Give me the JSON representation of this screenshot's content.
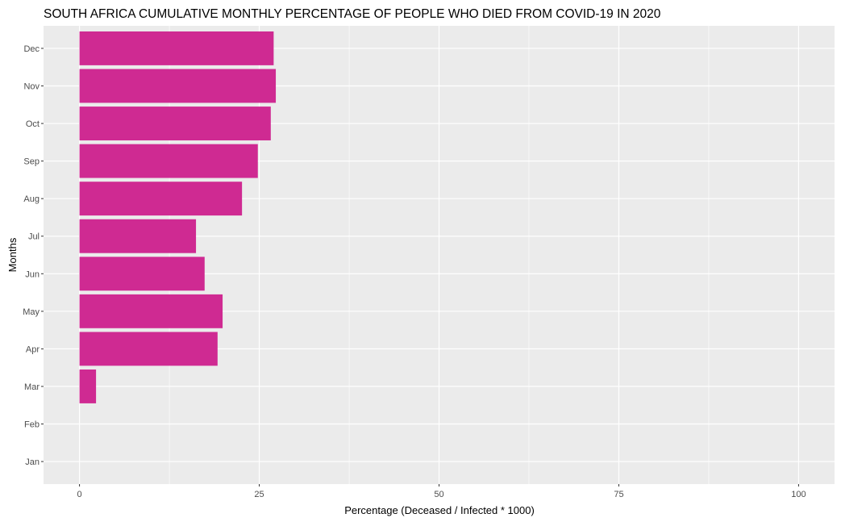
{
  "chart_data": {
    "type": "bar",
    "orientation": "horizontal",
    "title": "SOUTH AFRICA CUMULATIVE MONTHLY PERCENTAGE OF PEOPLE WHO DIED FROM COVID-19 IN 2020",
    "xlabel": "Percentage (Deceased / Infected * 1000)",
    "ylabel": "Months",
    "categories": [
      "Jan",
      "Feb",
      "Mar",
      "Apr",
      "May",
      "Jun",
      "Jul",
      "Aug",
      "Sep",
      "Oct",
      "Nov",
      "Dec"
    ],
    "values": [
      0,
      0,
      2.3,
      19.2,
      19.9,
      17.4,
      16.2,
      22.6,
      24.8,
      26.6,
      27.3,
      27.0
    ],
    "xlim": [
      -5,
      105
    ],
    "xticks": [
      0,
      25,
      50,
      75,
      100
    ],
    "grid": true,
    "colors": {
      "bar": "#CF2A92",
      "panel": "#EBEBEB",
      "grid": "#FFFFFF"
    }
  }
}
